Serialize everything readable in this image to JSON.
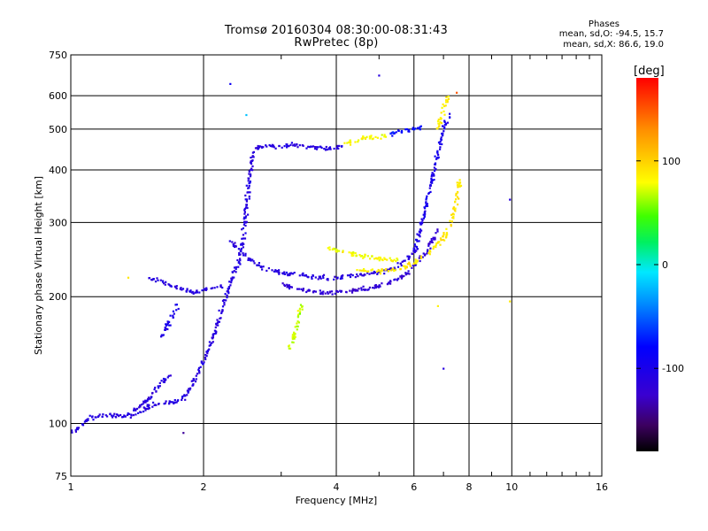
{
  "header": {
    "title_line1": "Tromsø 20160304 08:30:00-08:31:43",
    "title_line2": "RwPretec (8p)",
    "phases_title": "Phases",
    "phases_o": "mean, sd,O: -94.5, 15.7",
    "phases_x": "mean, sd,X:  86.6, 19.0"
  },
  "colorbar": {
    "unit_label": "[deg]",
    "ticks": [
      {
        "value": 100,
        "label": "100"
      },
      {
        "value": 0,
        "label": "0"
      },
      {
        "value": -100,
        "label": "-100"
      }
    ],
    "range": [
      -180,
      180
    ]
  },
  "chart_data": {
    "type": "scatter",
    "title": "Tromsø 20160304 08:30:00-08:31:43",
    "subtitle": "RwPretec (8p)",
    "xlabel": "Frequency [MHz]",
    "ylabel": "Stationary phase Virtual Height [km]",
    "xscale": "log",
    "yscale": "log",
    "xlim": [
      1,
      16
    ],
    "ylim": [
      75,
      750
    ],
    "xticks": [
      1,
      2,
      4,
      6,
      8,
      10,
      16
    ],
    "yticks": [
      75,
      100,
      200,
      300,
      400,
      500,
      600,
      750
    ],
    "grid": true,
    "color_variable": "phase [deg]",
    "traces": [
      {
        "phase": -110,
        "points": [
          [
            1.0,
            95
          ],
          [
            1.05,
            98
          ],
          [
            1.1,
            103
          ],
          [
            1.2,
            105
          ],
          [
            1.3,
            104
          ],
          [
            1.4,
            105
          ],
          [
            1.5,
            110
          ],
          [
            1.6,
            111
          ],
          [
            1.7,
            112
          ],
          [
            1.8,
            115
          ],
          [
            1.9,
            125
          ],
          [
            2.0,
            140
          ],
          [
            2.1,
            160
          ],
          [
            2.2,
            185
          ],
          [
            2.3,
            215
          ],
          [
            2.4,
            240
          ],
          [
            2.45,
            270
          ],
          [
            2.5,
            330
          ],
          [
            2.55,
            400
          ],
          [
            2.6,
            440
          ]
        ]
      },
      {
        "phase": -110,
        "points": [
          [
            2.6,
            450
          ],
          [
            2.8,
            455
          ],
          [
            3.0,
            455
          ],
          [
            3.2,
            458
          ],
          [
            3.4,
            455
          ],
          [
            3.6,
            452
          ],
          [
            3.8,
            450
          ],
          [
            4.0,
            450
          ],
          [
            4.2,
            455
          ]
        ]
      },
      {
        "phase": 80,
        "points": [
          [
            4.2,
            460
          ],
          [
            4.4,
            470
          ],
          [
            4.6,
            475
          ],
          [
            4.8,
            478
          ],
          [
            5.0,
            480
          ],
          [
            5.2,
            482
          ]
        ]
      },
      {
        "phase": -80,
        "points": [
          [
            5.2,
            485
          ],
          [
            5.5,
            490
          ],
          [
            5.8,
            495
          ],
          [
            6.0,
            500
          ],
          [
            6.3,
            505
          ]
        ]
      },
      {
        "phase": -100,
        "points": [
          [
            6.0,
            255
          ],
          [
            6.2,
            290
          ],
          [
            6.4,
            330
          ],
          [
            6.6,
            380
          ],
          [
            6.8,
            440
          ],
          [
            7.0,
            500
          ],
          [
            7.2,
            540
          ]
        ]
      },
      {
        "phase": -110,
        "points": [
          [
            2.3,
            270
          ],
          [
            2.5,
            250
          ],
          [
            2.7,
            235
          ],
          [
            3.0,
            228
          ],
          [
            3.3,
            225
          ],
          [
            3.6,
            222
          ],
          [
            4.0,
            222
          ],
          [
            4.5,
            225
          ],
          [
            5.0,
            228
          ],
          [
            5.5,
            235
          ],
          [
            5.9,
            250
          ],
          [
            6.1,
            262
          ]
        ]
      },
      {
        "phase": -120,
        "points": [
          [
            3.0,
            215
          ],
          [
            3.3,
            208
          ],
          [
            3.6,
            205
          ],
          [
            4.0,
            205
          ],
          [
            4.4,
            207
          ],
          [
            4.8,
            210
          ],
          [
            5.2,
            215
          ],
          [
            5.6,
            222
          ],
          [
            6.0,
            235
          ],
          [
            6.4,
            255
          ],
          [
            6.8,
            290
          ]
        ]
      },
      {
        "phase": 80,
        "points": [
          [
            3.8,
            262
          ],
          [
            4.0,
            258
          ],
          [
            4.4,
            252
          ],
          [
            4.8,
            248
          ],
          [
            5.2,
            245
          ],
          [
            5.6,
            245
          ]
        ]
      },
      {
        "phase": 90,
        "points": [
          [
            4.5,
            232
          ],
          [
            5.0,
            230
          ],
          [
            5.5,
            232
          ],
          [
            6.0,
            240
          ],
          [
            6.5,
            255
          ],
          [
            7.0,
            275
          ],
          [
            7.3,
            300
          ],
          [
            7.5,
            340
          ],
          [
            7.6,
            380
          ]
        ]
      },
      {
        "phase": 85,
        "points": [
          [
            6.8,
            500
          ],
          [
            7.0,
            560
          ],
          [
            7.2,
            600
          ]
        ]
      },
      {
        "phase": -110,
        "points": [
          [
            1.35,
            105
          ],
          [
            1.5,
            114
          ],
          [
            1.6,
            125
          ],
          [
            1.7,
            130
          ]
        ]
      },
      {
        "phase": -110,
        "points": [
          [
            1.5,
            222
          ],
          [
            1.6,
            218
          ],
          [
            1.7,
            212
          ],
          [
            1.8,
            208
          ],
          [
            1.9,
            205
          ],
          [
            2.0,
            208
          ],
          [
            2.1,
            210
          ],
          [
            2.2,
            212
          ]
        ]
      },
      {
        "phase": -100,
        "points": [
          [
            1.6,
            160
          ],
          [
            1.65,
            170
          ],
          [
            1.7,
            180
          ],
          [
            1.75,
            190
          ]
        ]
      },
      {
        "phase": 70,
        "points": [
          [
            3.1,
            150
          ],
          [
            3.2,
            160
          ],
          [
            3.25,
            170
          ],
          [
            3.3,
            185
          ],
          [
            3.35,
            192
          ]
        ]
      }
    ],
    "scattered_points": [
      {
        "freq": 2.3,
        "height": 640,
        "phase": -90
      },
      {
        "freq": 5.0,
        "height": 670,
        "phase": -110
      },
      {
        "freq": 9.9,
        "height": 340,
        "phase": -110
      },
      {
        "freq": 9.9,
        "height": 195,
        "phase": 90
      },
      {
        "freq": 7.0,
        "height": 135,
        "phase": -110
      },
      {
        "freq": 1.8,
        "height": 95,
        "phase": -140
      },
      {
        "freq": 1.35,
        "height": 222,
        "phase": 90
      },
      {
        "freq": 6.8,
        "height": 190,
        "phase": 85
      },
      {
        "freq": 2.5,
        "height": 540,
        "phase": -20
      },
      {
        "freq": 7.5,
        "height": 610,
        "phase": 150
      }
    ]
  }
}
